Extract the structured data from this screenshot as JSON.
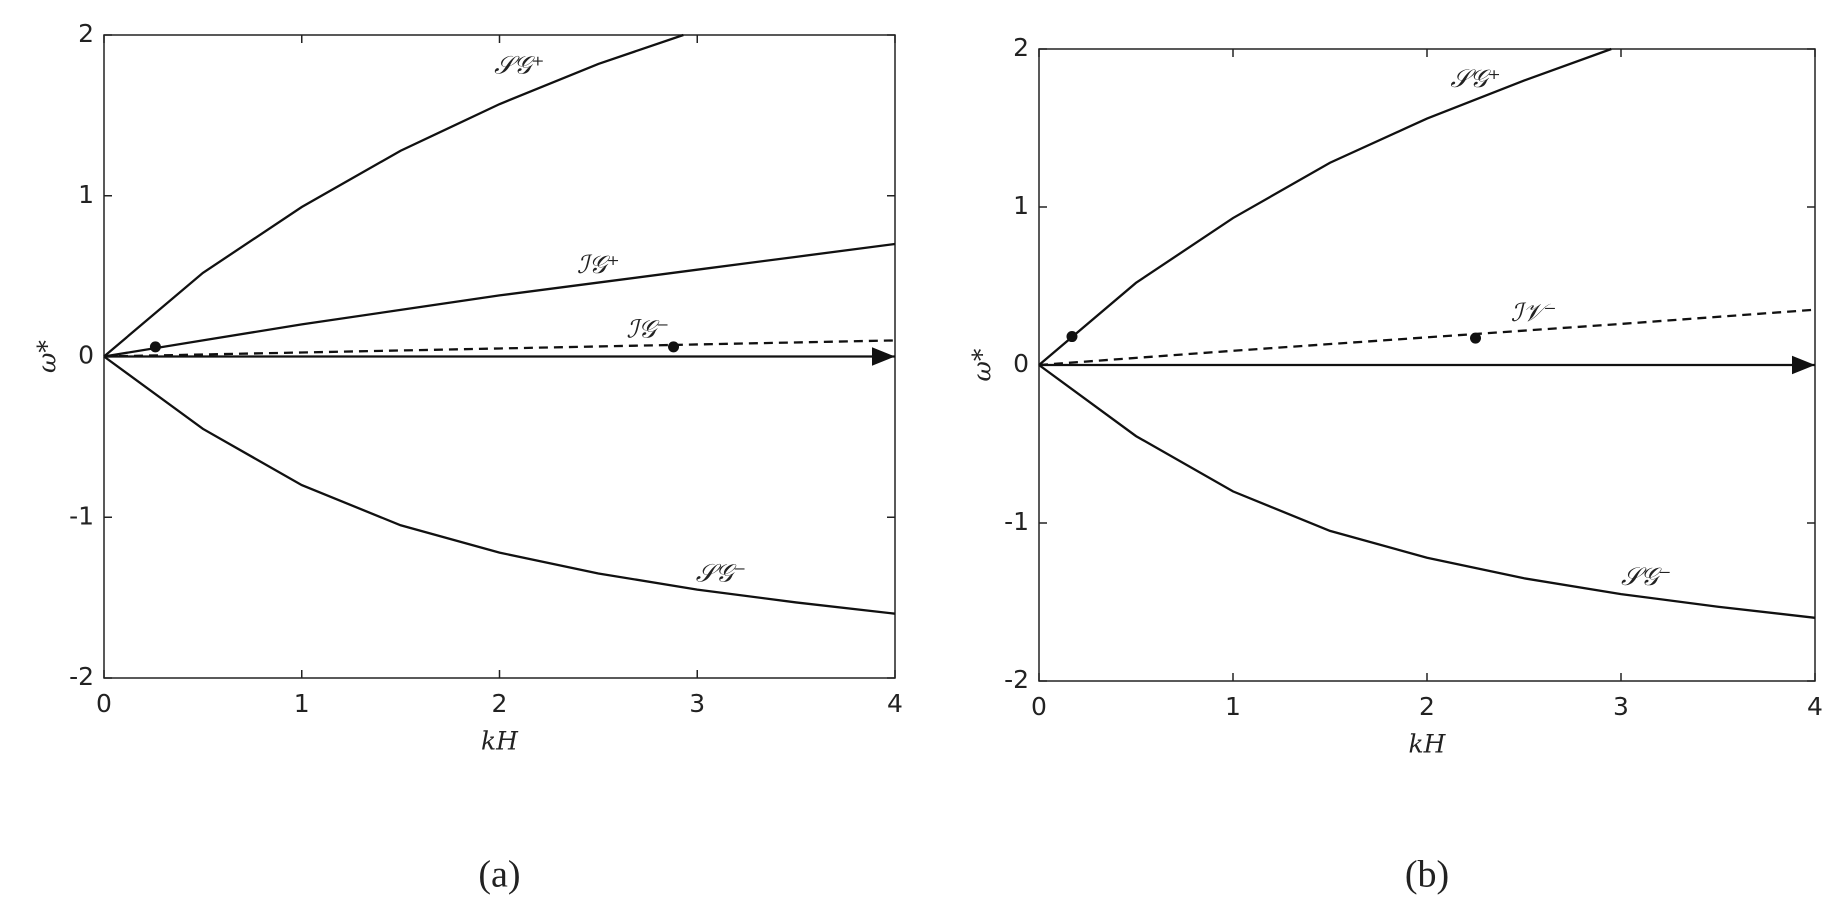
{
  "chart_data": [
    {
      "type": "line",
      "caption": "(a)",
      "x_label": "kH",
      "y_label": "ω*",
      "xlim": [
        0,
        4
      ],
      "ylim": [
        -2,
        2
      ],
      "xticks": [
        0,
        1,
        2,
        3,
        4
      ],
      "yticks": [
        -2,
        -1,
        0,
        1,
        2
      ],
      "color": "#111111",
      "series": [
        {
          "name": "𝒮𝒢⁺",
          "x": [
            0,
            0.5,
            1,
            1.5,
            2,
            2.5,
            2.93
          ],
          "values": [
            0,
            0.52,
            0.93,
            1.28,
            1.57,
            1.82,
            2.0
          ]
        },
        {
          "name": "ℐ𝒢⁺",
          "x": [
            0,
            0.5,
            1,
            1.5,
            2,
            2.5,
            3,
            3.5,
            4
          ],
          "values": [
            0,
            0.1,
            0.2,
            0.29,
            0.38,
            0.46,
            0.54,
            0.62,
            0.7
          ]
        },
        {
          "name": "ℐ𝒢⁻",
          "dash": true,
          "x": [
            0,
            1,
            2,
            3,
            4
          ],
          "values": [
            0,
            0.025,
            0.05,
            0.075,
            0.1
          ]
        },
        {
          "arrow": true,
          "x": [
            0,
            4
          ],
          "values": [
            0,
            0
          ]
        },
        {
          "name": "𝒮𝒢⁻",
          "x": [
            0,
            0.5,
            1,
            1.5,
            2,
            2.5,
            3,
            3.5,
            4
          ],
          "values": [
            0,
            -0.45,
            -0.8,
            -1.05,
            -1.22,
            -1.35,
            -1.45,
            -1.53,
            -1.6
          ]
        }
      ],
      "points": {
        "x": [
          0.26,
          2.88
        ],
        "values": [
          0.06,
          0.06
        ]
      }
    },
    {
      "type": "line",
      "caption": "(b)",
      "x_label": "kH",
      "y_label": "ω*",
      "xlim": [
        0,
        4
      ],
      "ylim": [
        -2,
        2
      ],
      "xticks": [
        0,
        1,
        2,
        3,
        4
      ],
      "yticks": [
        -2,
        -1,
        0,
        1,
        2
      ],
      "color": "#111111",
      "series": [
        {
          "name": "𝒮𝒢⁺",
          "x": [
            0,
            0.5,
            1,
            1.5,
            2,
            2.5,
            2.95
          ],
          "values": [
            0,
            0.52,
            0.93,
            1.28,
            1.56,
            1.8,
            2.0
          ]
        },
        {
          "name": "ℐ𝒱⁻",
          "dash": true,
          "x": [
            0,
            1,
            2,
            3,
            4
          ],
          "values": [
            0,
            0.09,
            0.175,
            0.26,
            0.35
          ]
        },
        {
          "arrow": true,
          "x": [
            0,
            4
          ],
          "values": [
            0,
            0
          ]
        },
        {
          "name": "𝒮𝒢⁻",
          "x": [
            0,
            0.5,
            1,
            1.5,
            2,
            2.5,
            3,
            3.5,
            4
          ],
          "values": [
            0,
            -0.45,
            -0.8,
            -1.05,
            -1.22,
            -1.35,
            -1.45,
            -1.53,
            -1.6
          ]
        }
      ],
      "points": {
        "x": [
          0.17,
          2.25
        ],
        "values": [
          0.18,
          0.17
        ]
      }
    }
  ]
}
